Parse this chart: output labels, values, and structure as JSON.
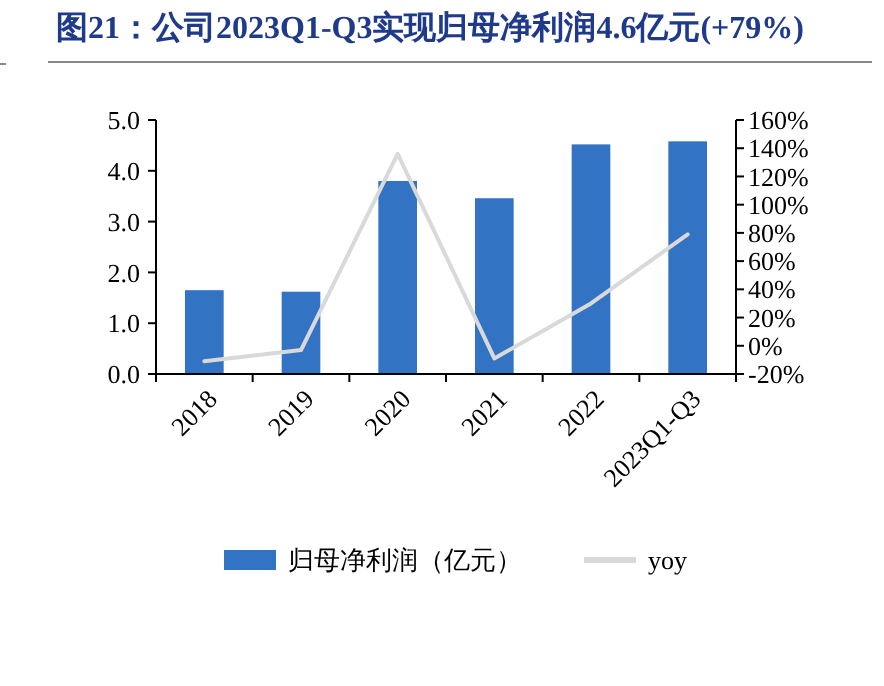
{
  "chart_data": {
    "type": "bar",
    "title": "图21：公司2023Q1-Q3实现归母净利润4.6亿元(+79%)",
    "categories": [
      "2018",
      "2019",
      "2020",
      "2021",
      "2022",
      "2023Q1-Q3"
    ],
    "series": [
      {
        "name": "归母净利润（亿元）",
        "color": "#3373c4",
        "values": [
          1.65,
          1.62,
          3.8,
          3.46,
          4.52,
          4.58
        ]
      },
      {
        "name": "yoy",
        "type": "line",
        "axis": "y2",
        "color": "#d9d9d9",
        "values": [
          -11,
          -3,
          136,
          -9,
          30,
          79
        ]
      }
    ],
    "ylim": [
      0,
      5
    ],
    "yticks": [
      {
        "value": 0,
        "label": "0.0"
      },
      {
        "value": 1,
        "label": "1.0"
      },
      {
        "value": 2,
        "label": "2.0"
      },
      {
        "value": 3,
        "label": "3.0"
      },
      {
        "value": 4,
        "label": "4.0"
      },
      {
        "value": 5,
        "label": "5.0"
      }
    ],
    "y2lim": [
      -20,
      160
    ],
    "y2ticks": [
      {
        "value": -20,
        "label": "-20%"
      },
      {
        "value": 0,
        "label": "0%"
      },
      {
        "value": 20,
        "label": "20%"
      },
      {
        "value": 40,
        "label": "40%"
      },
      {
        "value": 60,
        "label": "60%"
      },
      {
        "value": 80,
        "label": "80%"
      },
      {
        "value": 100,
        "label": "100%"
      },
      {
        "value": 120,
        "label": "120%"
      },
      {
        "value": 140,
        "label": "140%"
      },
      {
        "value": 160,
        "label": "160%"
      }
    ],
    "legend": "bottom",
    "grid": false
  }
}
